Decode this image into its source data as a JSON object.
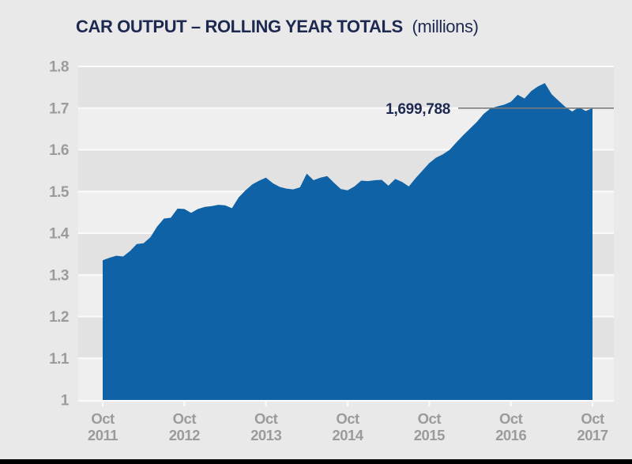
{
  "title": {
    "main": "CAR OUTPUT – ROLLING YEAR TOTALS",
    "suffix": "(millions)"
  },
  "colors": {
    "background": "#e9e9e9",
    "band_dark": "#e2e2e2",
    "band_light": "#efefef",
    "gridline": "#fbfbfb",
    "area_fill": "#0e62a5",
    "navy_text": "#1e2951",
    "gray_text": "#9b9b9b",
    "annotation_line": "#7a7a7a",
    "bottom_bar": "#000000"
  },
  "chart_data": {
    "type": "area",
    "title": "CAR OUTPUT – ROLLING YEAR TOTALS (millions)",
    "ylabel": "",
    "xlabel": "",
    "ylim": [
      1.0,
      1.8
    ],
    "y_tick_labels": [
      "1.8",
      "1.7",
      "1.6",
      "1.5",
      "1.4",
      "1.3",
      "1.2",
      "1.1",
      "1"
    ],
    "y_tick_values": [
      1.8,
      1.7,
      1.6,
      1.5,
      1.4,
      1.3,
      1.2,
      1.1,
      1.0
    ],
    "x_tick_labels": [
      {
        "top": "Oct",
        "bottom": "2011"
      },
      {
        "top": "Oct",
        "bottom": "2012"
      },
      {
        "top": "Oct",
        "bottom": "2013"
      },
      {
        "top": "Oct",
        "bottom": "2014"
      },
      {
        "top": "Oct",
        "bottom": "2015"
      },
      {
        "top": "Oct",
        "bottom": "2016"
      },
      {
        "top": "Oct",
        "bottom": "2017"
      }
    ],
    "x_start": "Oct 2011",
    "x_end": "Oct 2017",
    "sampling": "monthly rolling-year totals",
    "unit": "millions",
    "grid": "horizontal white gridlines every 0.1 over alternating gray bands",
    "legend": "none",
    "series": [
      {
        "name": "Car output rolling year total",
        "values": [
          1.335,
          1.341,
          1.346,
          1.344,
          1.357,
          1.374,
          1.376,
          1.39,
          1.416,
          1.435,
          1.437,
          1.459,
          1.458,
          1.449,
          1.458,
          1.463,
          1.465,
          1.468,
          1.467,
          1.46,
          1.486,
          1.503,
          1.517,
          1.526,
          1.533,
          1.52,
          1.511,
          1.507,
          1.505,
          1.51,
          1.543,
          1.527,
          1.533,
          1.537,
          1.521,
          1.506,
          1.503,
          1.512,
          1.526,
          1.525,
          1.527,
          1.528,
          1.514,
          1.53,
          1.523,
          1.512,
          1.532,
          1.55,
          1.568,
          1.581,
          1.589,
          1.6,
          1.618,
          1.635,
          1.651,
          1.667,
          1.686,
          1.699,
          1.704,
          1.708,
          1.715,
          1.732,
          1.723,
          1.741,
          1.752,
          1.76,
          1.733,
          1.718,
          1.703,
          1.692,
          1.702,
          1.693,
          1.6998
        ]
      }
    ],
    "annotation": {
      "text": "1,699,788",
      "value_millions": 1.699788,
      "at": "Oct 2017"
    }
  }
}
